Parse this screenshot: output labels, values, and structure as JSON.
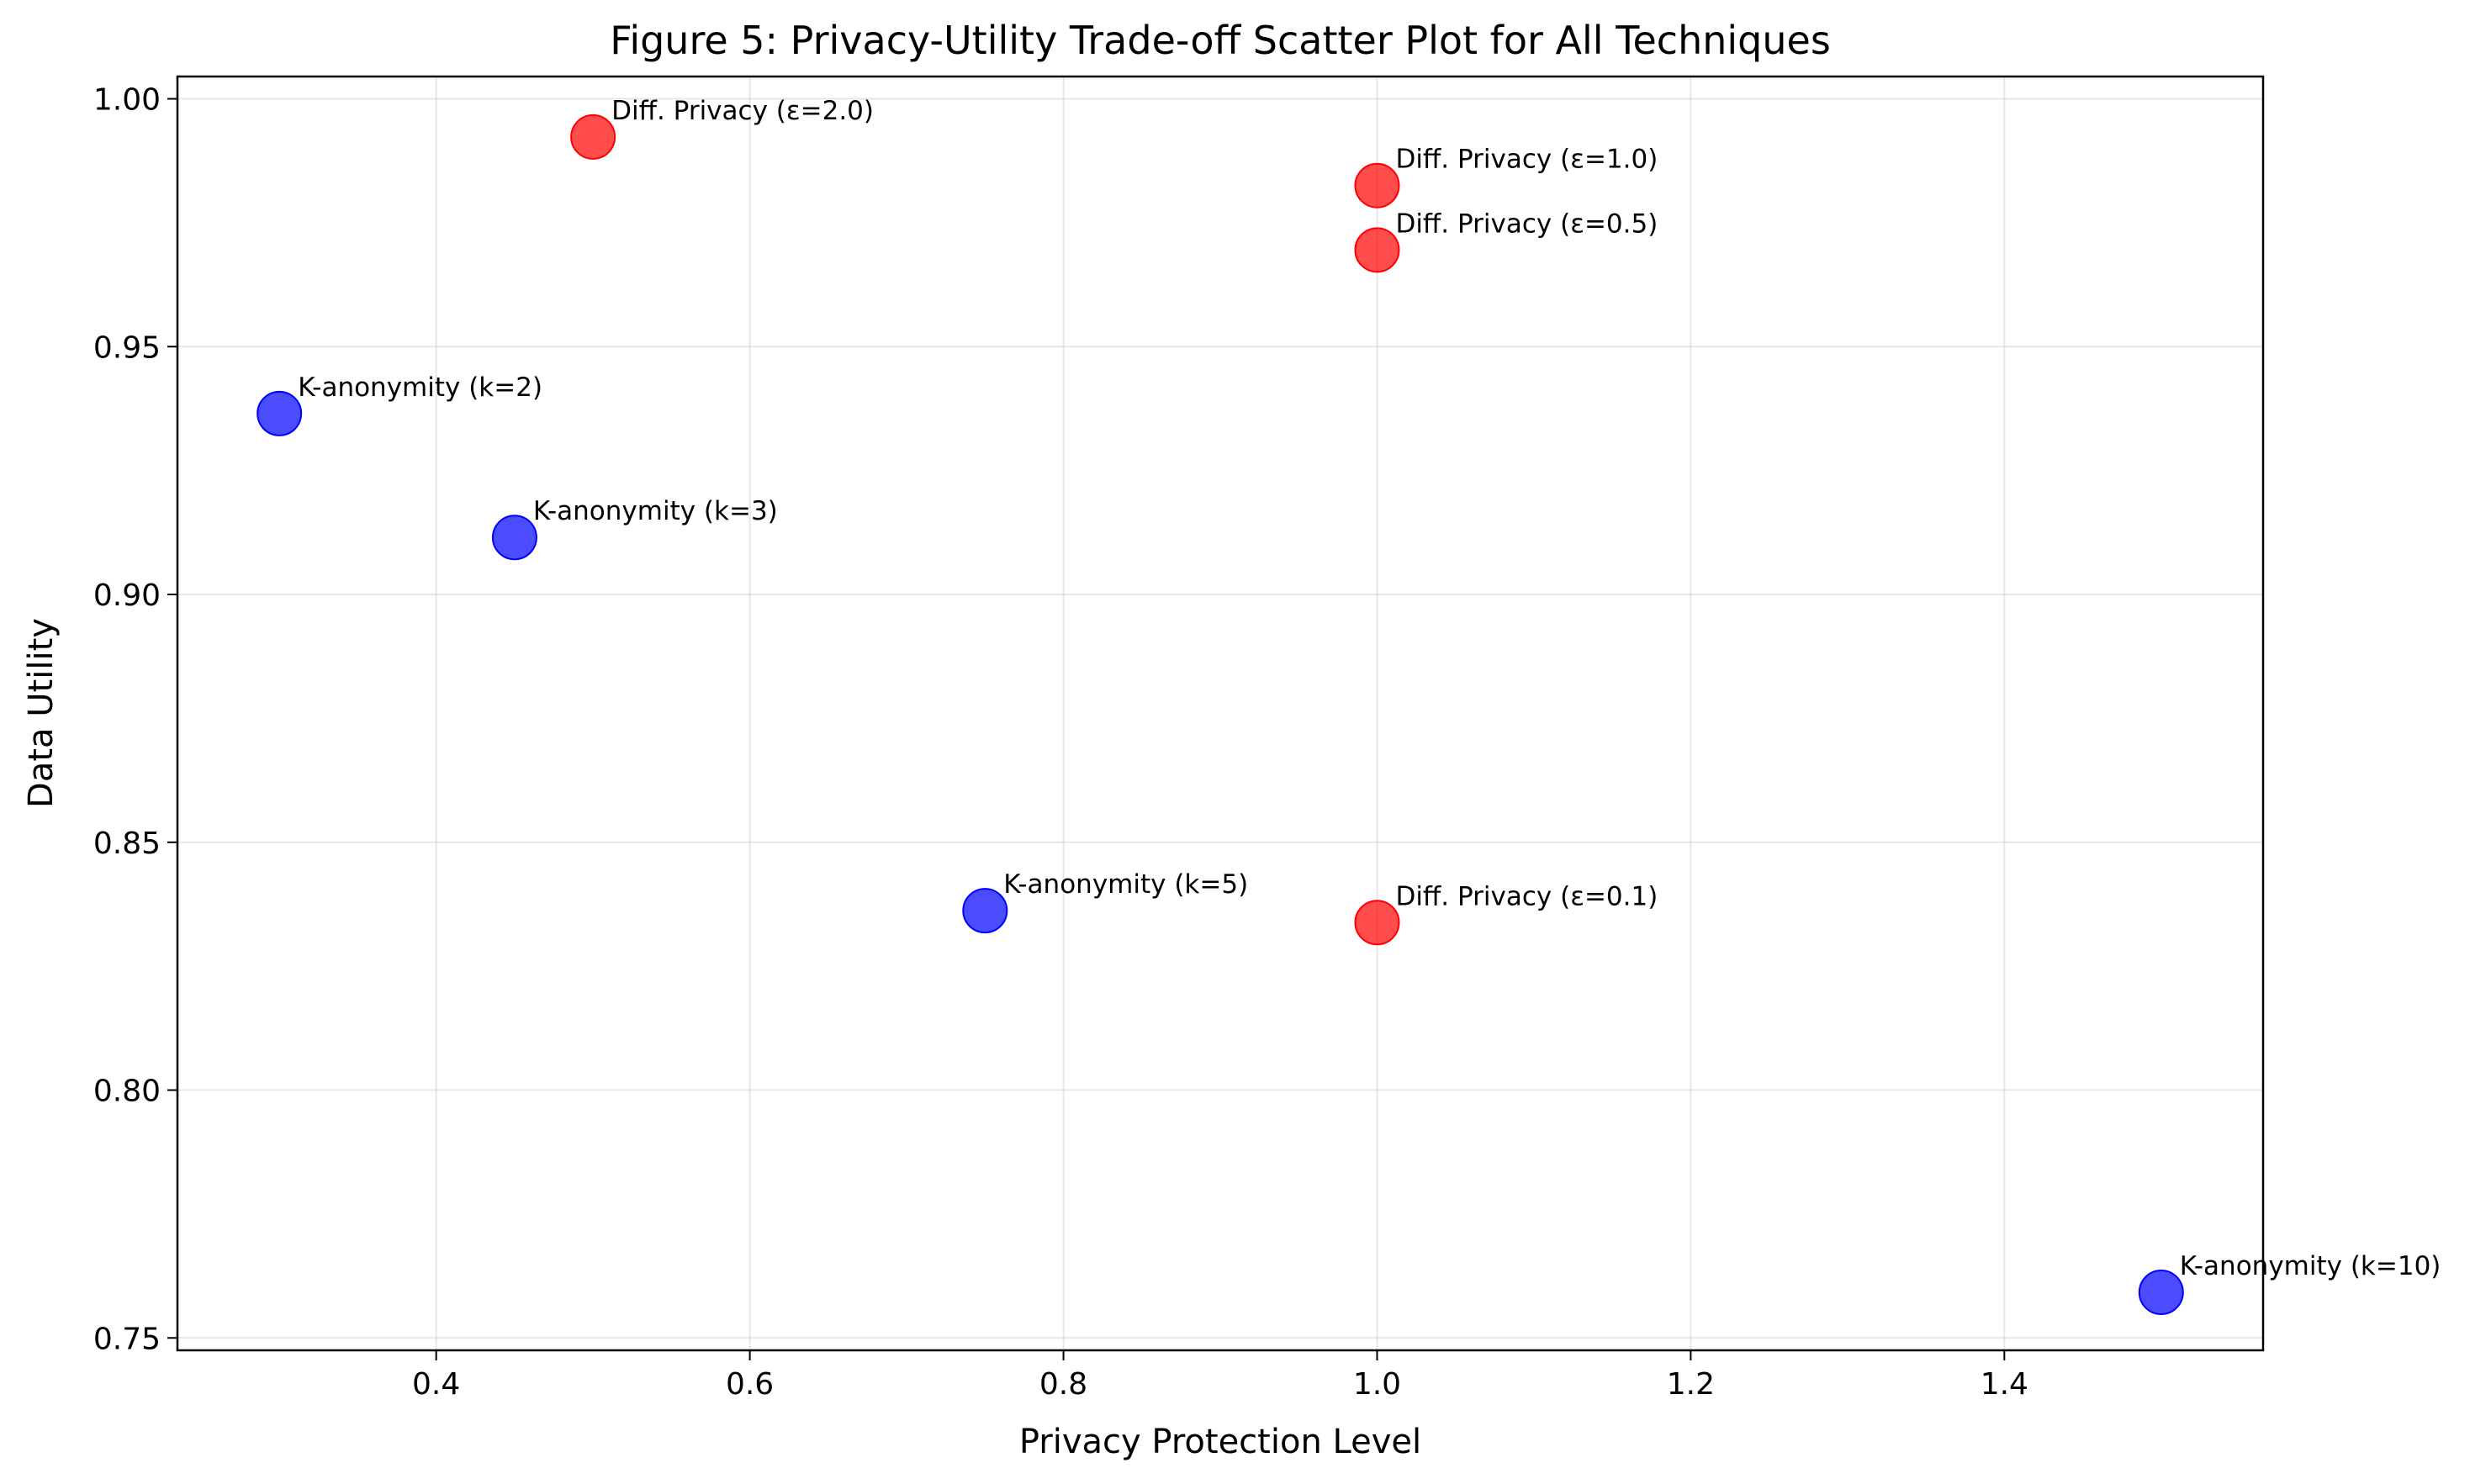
{
  "chart_data": {
    "type": "scatter",
    "title": "Figure 5: Privacy-Utility Trade-off Scatter Plot for All Techniques",
    "xlabel": "Privacy Protection Level",
    "ylabel": "Data Utility",
    "xlim": [
      0.235,
      1.565
    ],
    "ylim": [
      0.7475,
      1.0045
    ],
    "xticks": [
      0.4,
      0.6,
      0.8,
      1.0,
      1.2,
      1.4
    ],
    "xtick_labels": [
      "0.4",
      "0.6",
      "0.8",
      "1.0",
      "1.2",
      "1.4"
    ],
    "yticks": [
      0.75,
      0.8,
      0.85,
      0.9,
      0.95,
      1.0
    ],
    "ytick_labels": [
      "0.75",
      "0.80",
      "0.85",
      "0.90",
      "0.95",
      "1.00"
    ],
    "grid": true,
    "legend": "none",
    "colors": {
      "k_anonymity": "#0000ff",
      "diff_privacy": "#ff0000"
    },
    "points": [
      {
        "label": "K-anonymity (k=2)",
        "x": 0.3,
        "y": 0.9365,
        "group": "k_anonymity"
      },
      {
        "label": "K-anonymity (k=3)",
        "x": 0.45,
        "y": 0.9115,
        "group": "k_anonymity"
      },
      {
        "label": "K-anonymity (k=5)",
        "x": 0.75,
        "y": 0.8362,
        "group": "k_anonymity"
      },
      {
        "label": "K-anonymity (k=10)",
        "x": 1.5,
        "y": 0.7592,
        "group": "k_anonymity"
      },
      {
        "label": "Diff. Privacy (ε=2.0)",
        "x": 0.5,
        "y": 0.9923,
        "group": "diff_privacy"
      },
      {
        "label": "Diff. Privacy (ε=1.0)",
        "x": 1.0,
        "y": 0.9825,
        "group": "diff_privacy"
      },
      {
        "label": "Diff. Privacy (ε=0.5)",
        "x": 1.0,
        "y": 0.9695,
        "group": "diff_privacy"
      },
      {
        "label": "Diff. Privacy (ε=0.1)",
        "x": 1.0,
        "y": 0.8338,
        "group": "diff_privacy"
      }
    ]
  }
}
